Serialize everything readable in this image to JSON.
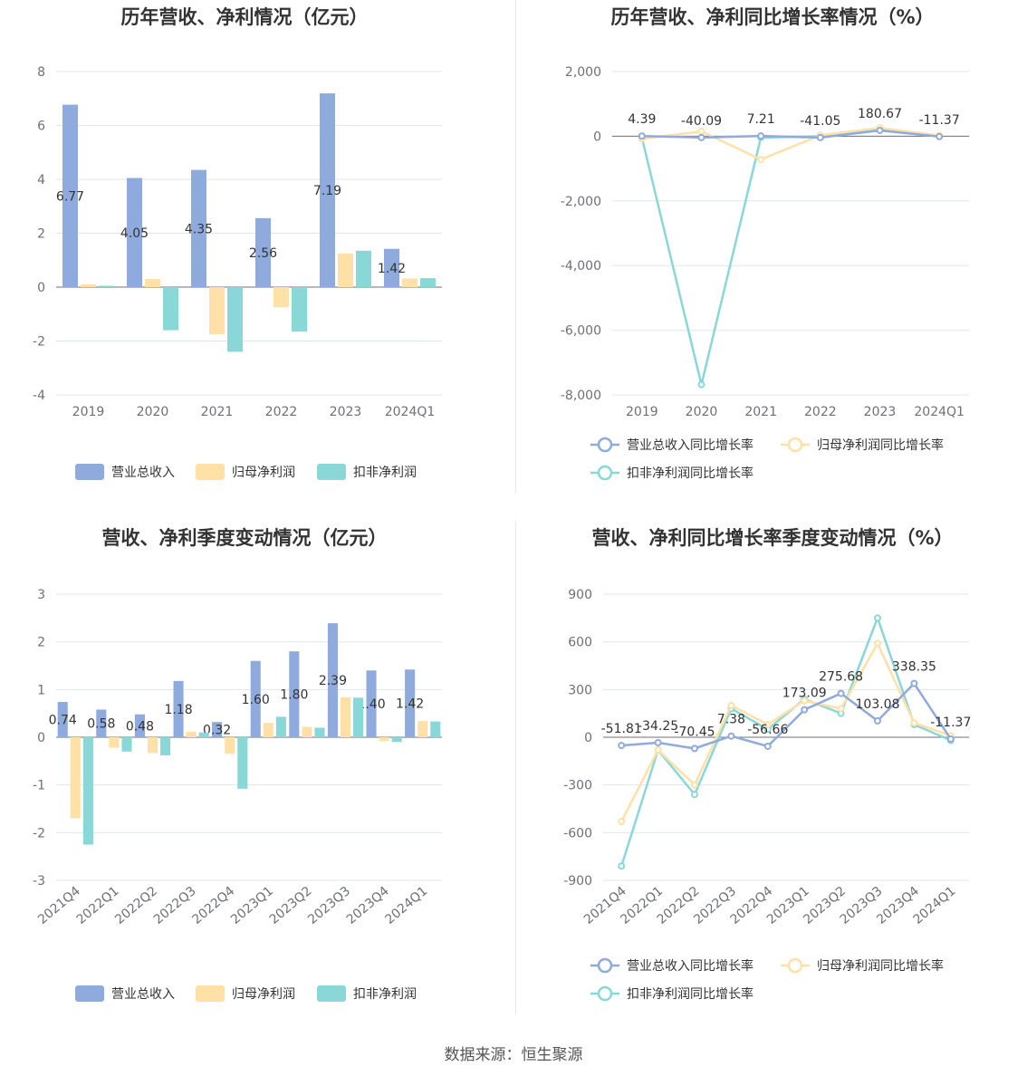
{
  "colors": {
    "revenue": "#8faadc",
    "net_profit": "#ffe1a8",
    "deducted_profit": "#8ad7d8",
    "grid": "#e0e6f1",
    "axis": "#6e7079"
  },
  "footer": {
    "source": "数据来源：恒生聚源"
  },
  "chart_data": [
    {
      "type": "bar",
      "title": "历年营收、净利情况（亿元）",
      "categories": [
        "2019",
        "2020",
        "2021",
        "2022",
        "2023",
        "2024Q1"
      ],
      "ylim": [
        -4,
        8
      ],
      "yticks": [
        -4,
        -2,
        0,
        2,
        4,
        6,
        8
      ],
      "series": [
        {
          "name": "营业总收入",
          "values": [
            6.77,
            4.05,
            4.35,
            2.56,
            7.19,
            1.42
          ],
          "labels": [
            "6.77",
            "4.05",
            "4.35",
            "2.56",
            "7.19",
            "1.42"
          ]
        },
        {
          "name": "归母净利润",
          "values": [
            0.1,
            0.3,
            -1.75,
            -0.75,
            1.25,
            0.32
          ]
        },
        {
          "name": "扣非净利润",
          "values": [
            0.05,
            -1.6,
            -2.4,
            -1.65,
            1.35,
            0.33
          ]
        }
      ],
      "grid": true,
      "legend_position": "bottom"
    },
    {
      "type": "line",
      "title": "历年营收、净利同比增长率情况（%）",
      "categories": [
        "2019",
        "2020",
        "2021",
        "2022",
        "2023",
        "2024Q1"
      ],
      "ylim": [
        -8000,
        2000
      ],
      "yticks": [
        -8000,
        -6000,
        -4000,
        -2000,
        0,
        2000
      ],
      "ytick_labels": [
        "-8,000",
        "-6,000",
        "-4,000",
        "-2,000",
        "0",
        "2,000"
      ],
      "series": [
        {
          "name": "营业总收入同比增长率",
          "values": [
            4.39,
            -40.09,
            7.21,
            -41.05,
            180.67,
            -11.37
          ],
          "labels": [
            "4.39",
            "-40.09",
            "7.21",
            "-41.05",
            "180.67",
            "-11.37"
          ]
        },
        {
          "name": "归母净利润同比增长率",
          "values": [
            -80,
            150,
            -720,
            30,
            260,
            20
          ]
        },
        {
          "name": "扣非净利润同比增长率",
          "values": [
            -50,
            -7680,
            -40,
            0,
            200,
            10
          ]
        }
      ],
      "grid": true,
      "legend_position": "bottom"
    },
    {
      "type": "bar",
      "title": "营收、净利季度变动情况（亿元）",
      "categories": [
        "2021Q4",
        "2022Q1",
        "2022Q2",
        "2022Q3",
        "2022Q4",
        "2023Q1",
        "2023Q2",
        "2023Q3",
        "2023Q4",
        "2024Q1"
      ],
      "ylim": [
        -3,
        3
      ],
      "yticks": [
        -3,
        -2,
        -1,
        0,
        1,
        2,
        3
      ],
      "series": [
        {
          "name": "营业总收入",
          "values": [
            0.74,
            0.58,
            0.48,
            1.18,
            0.32,
            1.6,
            1.8,
            2.39,
            1.4,
            1.42
          ],
          "labels": [
            "0.74",
            "0.58",
            "0.48",
            "1.18",
            "0.32",
            "1.60",
            "1.80",
            "2.39",
            "1.40",
            "1.42"
          ]
        },
        {
          "name": "归母净利润",
          "values": [
            -1.7,
            -0.22,
            -0.33,
            0.12,
            -0.35,
            0.3,
            0.22,
            0.84,
            -0.08,
            0.34
          ]
        },
        {
          "name": "扣非净利润",
          "values": [
            -2.25,
            -0.3,
            -0.38,
            0.1,
            -1.08,
            0.43,
            0.2,
            0.83,
            -0.1,
            0.33
          ]
        }
      ],
      "grid": true,
      "legend_position": "bottom"
    },
    {
      "type": "line",
      "title": "营收、净利同比增长率季度变动情况（%）",
      "categories": [
        "2021Q4",
        "2022Q1",
        "2022Q2",
        "2022Q3",
        "2022Q4",
        "2023Q1",
        "2023Q2",
        "2023Q3",
        "2023Q4",
        "2024Q1"
      ],
      "ylim": [
        -900,
        900
      ],
      "yticks": [
        -900,
        -600,
        -300,
        0,
        300,
        600,
        900
      ],
      "series": [
        {
          "name": "营业总收入同比增长率",
          "values": [
            -51.81,
            -34.25,
            -70.45,
            7.38,
            -56.66,
            173.09,
            275.68,
            103.08,
            338.35,
            -11.37
          ],
          "labels": [
            "-51.81",
            "-34.25",
            "-70.45",
            "7.38",
            "-56.66",
            "173.09",
            "275.68",
            "103.08",
            "338.35",
            "-11.37"
          ]
        },
        {
          "name": "归母净利润同比增长率",
          "values": [
            -530,
            -80,
            -300,
            200,
            80,
            230,
            180,
            590,
            90,
            10
          ]
        },
        {
          "name": "扣非净利润同比增长率",
          "values": [
            -810,
            -80,
            -360,
            180,
            50,
            240,
            150,
            750,
            80,
            -20
          ]
        }
      ],
      "grid": true,
      "legend_position": "bottom"
    }
  ]
}
